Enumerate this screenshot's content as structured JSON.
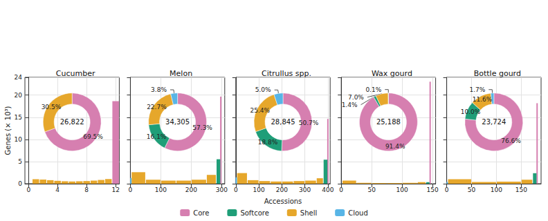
{
  "chart_data": {
    "type": "bar",
    "y_label": "Genes (× 10³)",
    "x_label": "Accessions",
    "ylim": [
      0,
      24
    ],
    "yticks": [
      0,
      5,
      10,
      15,
      20
    ],
    "grid": true,
    "legend": "bottom",
    "series": [
      {
        "name": "Core",
        "color": "#d67fb0"
      },
      {
        "name": "Softcore",
        "color": "#1f9e78"
      },
      {
        "name": "Shell",
        "color": "#e6a72b"
      },
      {
        "name": "Cloud",
        "color": "#58b5e6"
      }
    ],
    "panels": [
      {
        "title": "Cucumber",
        "xlim": [
          -0.5,
          12.5
        ],
        "xticks": [
          0,
          4,
          8,
          12
        ],
        "bins": [
          0.5,
          1.5,
          2.5,
          3.5,
          4.5,
          5.5,
          6.5,
          7.5,
          8.5,
          9.5,
          10.5,
          11.5,
          12.5
        ],
        "values": [
          1.0,
          0.95,
          0.8,
          0.65,
          0.55,
          0.5,
          0.55,
          0.6,
          0.7,
          0.85,
          1.05,
          18.64
        ],
        "groups": [
          "Shell",
          "Shell",
          "Shell",
          "Shell",
          "Shell",
          "Shell",
          "Shell",
          "Shell",
          "Shell",
          "Shell",
          "Shell",
          "Core"
        ],
        "donut": {
          "type": "pie",
          "total": 26822,
          "total_label": "26,822",
          "categories": [
            "Core",
            "Shell"
          ],
          "values": [
            69.5,
            30.5
          ],
          "value_labels": [
            "69.5%",
            "30.5%"
          ]
        }
      },
      {
        "title": "Melon",
        "xlim": [
          0,
          310
        ],
        "xticks": [
          0,
          100,
          200,
          300
        ],
        "tick_labels": "x",
        "bins": [
          0,
          3,
          50,
          100,
          150,
          200,
          250,
          282,
          296.5,
          297.5
        ],
        "values": [
          1.3,
          2.6,
          0.9,
          0.7,
          0.7,
          0.9,
          1.99,
          5.52,
          19.66
        ],
        "groups": [
          "Cloud",
          "Shell",
          "Shell",
          "Shell",
          "Shell",
          "Shell",
          "Shell",
          "Softcore",
          "Core"
        ],
        "donut": {
          "type": "pie",
          "total": 34305,
          "total_label": "34,305",
          "categories": [
            "Core",
            "Softcore",
            "Shell",
            "Cloud"
          ],
          "values": [
            57.3,
            16.1,
            22.7,
            3.8
          ],
          "value_labels": [
            "57.3%",
            "16.1%",
            "22.7%",
            "3.8%"
          ]
        }
      },
      {
        "title": "Citrullus spp.",
        "xlim": [
          0,
          410
        ],
        "xticks": [
          0,
          100,
          200,
          300,
          400
        ],
        "tick_labels": "x",
        "bins": [
          0,
          4,
          50,
          100,
          150,
          200,
          250,
          300,
          350,
          380,
          399.5,
          400.5
        ],
        "values": [
          1.44,
          2.4,
          0.8,
          0.6,
          0.5,
          0.5,
          0.6,
          0.7,
          1.23,
          5.42,
          14.62
        ],
        "groups": [
          "Cloud",
          "Shell",
          "Shell",
          "Shell",
          "Shell",
          "Shell",
          "Shell",
          "Shell",
          "Shell",
          "Softcore",
          "Core"
        ],
        "donut": {
          "type": "pie",
          "total": 28845,
          "total_label": "28,845",
          "categories": [
            "Core",
            "Softcore",
            "Shell",
            "Cloud"
          ],
          "values": [
            50.7,
            18.8,
            25.4,
            5.0
          ],
          "value_labels": [
            "50.7%",
            "18.8%",
            "25.4%",
            "5.0%"
          ]
        }
      },
      {
        "title": "Wax gourd",
        "xlim": [
          0,
          155
        ],
        "xticks": [
          0,
          50,
          100,
          150
        ],
        "tick_labels": "x",
        "bins": [
          0,
          1.5,
          25,
          50,
          75,
          100,
          125,
          139,
          145.5,
          146.5
        ],
        "values": [
          0.03,
          0.7,
          0.2,
          0.15,
          0.15,
          0.2,
          0.36,
          0.35,
          23.02
        ],
        "groups": [
          "Cloud",
          "Shell",
          "Shell",
          "Shell",
          "Shell",
          "Shell",
          "Shell",
          "Softcore",
          "Core"
        ],
        "donut": {
          "type": "pie",
          "total": 25188,
          "total_label": "25,188",
          "categories": [
            "Core",
            "Softcore",
            "Shell",
            "Cloud"
          ],
          "values": [
            91.4,
            1.4,
            7.0,
            0.1
          ],
          "value_labels": [
            "91.4%",
            "1.4%",
            "7.0%",
            "0.1%"
          ]
        }
      },
      {
        "title": "Bottle gourd",
        "xlim": [
          0,
          190
        ],
        "xticks": [
          0,
          50,
          100,
          150
        ],
        "tick_labels": "x",
        "bins": [
          0,
          2,
          50,
          100,
          150,
          173,
          181.5,
          182.5
        ],
        "values": [
          0.4,
          1.0,
          0.4,
          0.45,
          0.9,
          2.37,
          18.17
        ],
        "groups": [
          "Cloud",
          "Shell",
          "Shell",
          "Shell",
          "Shell",
          "Softcore",
          "Core"
        ],
        "donut": {
          "type": "pie",
          "total": 23724,
          "total_label": "23,724",
          "categories": [
            "Core",
            "Softcore",
            "Shell",
            "Cloud"
          ],
          "values": [
            76.6,
            10.0,
            11.6,
            1.7
          ],
          "value_labels": [
            "76.6%",
            "10.0%",
            "11.6%",
            "1.7%"
          ]
        }
      }
    ]
  }
}
